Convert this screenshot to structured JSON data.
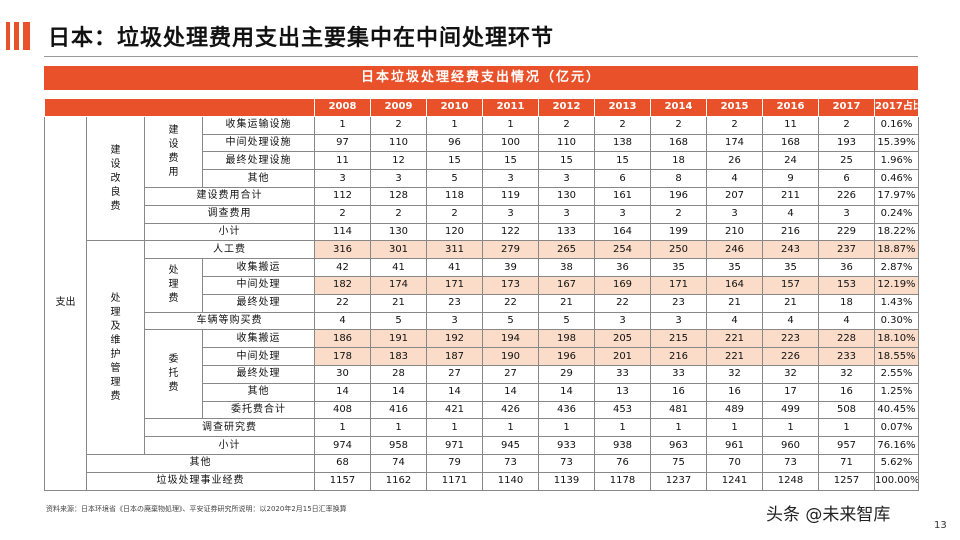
{
  "title": "日本：垃圾处理费用支出主要集中在中间处理环节",
  "banner": "日本垃圾处理经费支出情况（亿元）",
  "years": [
    "2008",
    "2009",
    "2010",
    "2011",
    "2012",
    "2013",
    "2014",
    "2015",
    "2016",
    "2017",
    "2017占比"
  ],
  "labels": {
    "zhichu": "支出",
    "jianshe_group": "建设改良费",
    "jianshe_sub": "建设费用",
    "chuli_group": "处理及维护管理费",
    "chuli_sub": "处理费",
    "weituo_sub": "委托费"
  },
  "rows": [
    {
      "label": "收集运输设施",
      "values": [
        "1",
        "2",
        "1",
        "1",
        "2",
        "2",
        "2",
        "2",
        "11",
        "2",
        "0.16%"
      ]
    },
    {
      "label": "中间处理设施",
      "values": [
        "97",
        "110",
        "96",
        "100",
        "110",
        "138",
        "168",
        "174",
        "168",
        "193",
        "15.39%"
      ]
    },
    {
      "label": "最终处理设施",
      "values": [
        "11",
        "12",
        "15",
        "15",
        "15",
        "15",
        "18",
        "26",
        "24",
        "25",
        "1.96%"
      ]
    },
    {
      "label": "其他",
      "values": [
        "3",
        "3",
        "5",
        "3",
        "3",
        "6",
        "8",
        "4",
        "9",
        "6",
        "0.46%"
      ]
    },
    {
      "label": "建设费用合计",
      "values": [
        "112",
        "128",
        "118",
        "119",
        "130",
        "161",
        "196",
        "207",
        "211",
        "226",
        "17.97%"
      ]
    },
    {
      "label": "调查费用",
      "values": [
        "2",
        "2",
        "2",
        "3",
        "3",
        "3",
        "2",
        "3",
        "4",
        "3",
        "0.24%"
      ]
    },
    {
      "label": "小计",
      "values": [
        "114",
        "130",
        "120",
        "122",
        "133",
        "164",
        "199",
        "210",
        "216",
        "229",
        "18.22%"
      ]
    },
    {
      "label": "人工费",
      "values": [
        "316",
        "301",
        "311",
        "279",
        "265",
        "254",
        "250",
        "246",
        "243",
        "237",
        "18.87%"
      ]
    },
    {
      "label": "收集搬运",
      "values": [
        "42",
        "41",
        "41",
        "39",
        "38",
        "36",
        "35",
        "35",
        "35",
        "36",
        "2.87%"
      ]
    },
    {
      "label": "中间处理",
      "values": [
        "182",
        "174",
        "171",
        "173",
        "167",
        "169",
        "171",
        "164",
        "157",
        "153",
        "12.19%"
      ]
    },
    {
      "label": "最终处理",
      "values": [
        "22",
        "21",
        "23",
        "22",
        "21",
        "22",
        "23",
        "21",
        "21",
        "18",
        "1.43%"
      ]
    },
    {
      "label": "车辆等购买费",
      "values": [
        "4",
        "5",
        "3",
        "5",
        "5",
        "3",
        "3",
        "4",
        "4",
        "4",
        "0.30%"
      ]
    },
    {
      "label": "收集搬运",
      "values": [
        "186",
        "191",
        "192",
        "194",
        "198",
        "205",
        "215",
        "221",
        "223",
        "228",
        "18.10%"
      ]
    },
    {
      "label": "中间处理",
      "values": [
        "178",
        "183",
        "187",
        "190",
        "196",
        "201",
        "216",
        "221",
        "226",
        "233",
        "18.55%"
      ]
    },
    {
      "label": "最终处理",
      "values": [
        "30",
        "28",
        "27",
        "27",
        "29",
        "33",
        "33",
        "32",
        "32",
        "32",
        "2.55%"
      ]
    },
    {
      "label": "其他",
      "values": [
        "14",
        "14",
        "14",
        "14",
        "14",
        "13",
        "16",
        "16",
        "17",
        "16",
        "1.25%"
      ]
    },
    {
      "label": "委托费合计",
      "values": [
        "408",
        "416",
        "421",
        "426",
        "436",
        "453",
        "481",
        "489",
        "499",
        "508",
        "40.45%"
      ]
    },
    {
      "label": "调查研究费",
      "values": [
        "1",
        "1",
        "1",
        "1",
        "1",
        "1",
        "1",
        "1",
        "1",
        "1",
        "0.07%"
      ]
    },
    {
      "label": "小计",
      "values": [
        "974",
        "958",
        "971",
        "945",
        "933",
        "938",
        "963",
        "961",
        "960",
        "957",
        "76.16%"
      ]
    },
    {
      "label": "其他",
      "values": [
        "68",
        "74",
        "79",
        "73",
        "73",
        "76",
        "75",
        "70",
        "73",
        "71",
        "5.62%"
      ]
    },
    {
      "label": "垃圾处理事业经费",
      "values": [
        "1157",
        "1162",
        "1171",
        "1140",
        "1139",
        "1178",
        "1237",
        "1241",
        "1248",
        "1257",
        "100.00%"
      ]
    }
  ],
  "highlight_color": "#fbdcc9",
  "accent_color": "#e8512a",
  "source": "资料来源：日本环境省《日本の廃棄物処理》、平安证券研究所说明：以2020年2月15日汇率换算",
  "watermark": "头条 @未来智库",
  "page_number": "13"
}
